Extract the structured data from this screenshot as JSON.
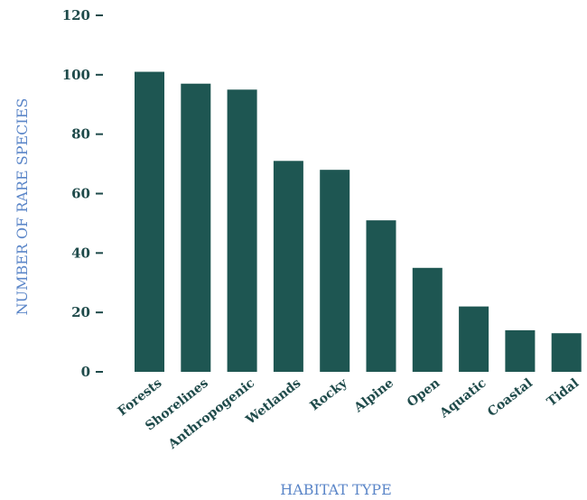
{
  "chart_data": {
    "type": "bar",
    "title": "",
    "xlabel": "HABITAT TYPE",
    "ylabel": "NUMBER OF RARE SPECIES",
    "categories": [
      "Forests",
      "Shorelines",
      "Anthropogenic",
      "Wetlands",
      "Rocky",
      "Alpine",
      "Open",
      "Aquatic",
      "Coastal",
      "Tidal"
    ],
    "values": [
      101,
      97,
      95,
      71,
      68,
      51,
      35,
      22,
      14,
      13
    ],
    "ylim": [
      0,
      120
    ],
    "yticks": [
      0,
      20,
      40,
      60,
      80,
      100,
      120
    ],
    "grid": false,
    "bar_color": "#1e5652",
    "text_color": "#1e4a4a",
    "axis_title_color": "#5b86c8"
  }
}
